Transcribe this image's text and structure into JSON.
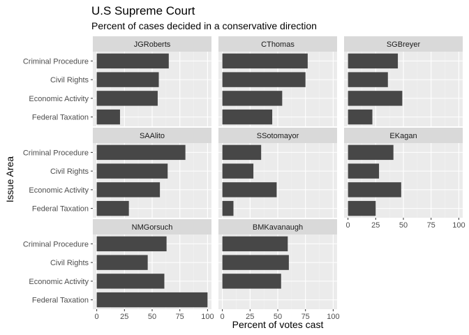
{
  "chart_data": {
    "type": "bar",
    "orientation": "horizontal",
    "layout": "facet-grid",
    "title": "U.S Supreme Court",
    "subtitle": "Percent of cases decided in a conservative direction",
    "xlabel": "Percent of votes cast",
    "ylabel": "Issue Area",
    "xlim": [
      0,
      100
    ],
    "xticks": [
      "0",
      "25",
      "50",
      "75",
      "100"
    ],
    "categories": [
      "Criminal Procedure",
      "Civil Rights",
      "Economic Activity",
      "Federal Taxation"
    ],
    "grid": true,
    "colors": {
      "bar": "#474747",
      "panel_bg": "#ebebeb",
      "strip_bg": "#d9d9d9",
      "grid_major": "#ffffff",
      "grid_minor": "#f3f3f3",
      "tick": "#333333"
    },
    "panels": [
      {
        "name": "JGRoberts",
        "values": [
          65,
          56,
          55,
          21
        ]
      },
      {
        "name": "CThomas",
        "values": [
          77,
          75,
          54,
          45
        ]
      },
      {
        "name": "SGBreyer",
        "values": [
          45,
          36,
          49,
          22
        ]
      },
      {
        "name": "SAAlito",
        "values": [
          80,
          64,
          57,
          29
        ]
      },
      {
        "name": "SSotomayor",
        "values": [
          35,
          28,
          49,
          10
        ]
      },
      {
        "name": "EKagan",
        "values": [
          41,
          28,
          48,
          25
        ]
      },
      {
        "name": "NMGorsuch",
        "values": [
          63,
          46,
          61,
          100
        ]
      },
      {
        "name": "BMKavanaugh",
        "values": [
          59,
          60,
          53,
          null
        ]
      }
    ]
  }
}
